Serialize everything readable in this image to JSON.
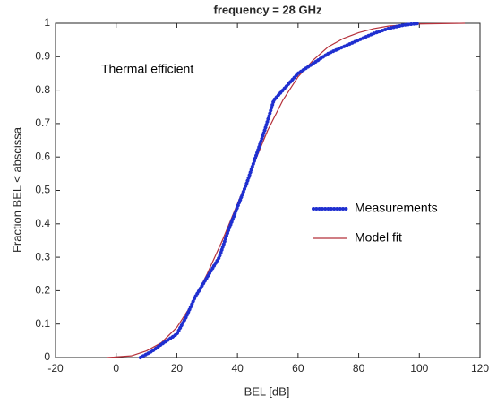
{
  "chart_data": {
    "type": "line",
    "title": "frequency = 28 GHz",
    "annotation": "Thermal efficient",
    "xlabel": "BEL [dB]",
    "ylabel": "Fraction BEL < abscissa",
    "xlim": [
      -20,
      120
    ],
    "ylim": [
      0,
      1
    ],
    "xticks": [
      -20,
      0,
      20,
      40,
      60,
      80,
      100,
      120
    ],
    "yticks": [
      0,
      0.1,
      0.2,
      0.3,
      0.4,
      0.5,
      0.6,
      0.7,
      0.8,
      0.9,
      1
    ],
    "grid": false,
    "legend": "right",
    "series": [
      {
        "name": "Measurements",
        "color": "#1f2fd0",
        "x": [
          8,
          12,
          15,
          20,
          23,
          26,
          30,
          34,
          37,
          40,
          43,
          46,
          49,
          51,
          52,
          55,
          60,
          65,
          70,
          75,
          80,
          85,
          90,
          95,
          100
        ],
        "values": [
          0,
          0.02,
          0.04,
          0.07,
          0.12,
          0.18,
          0.24,
          0.3,
          0.38,
          0.45,
          0.52,
          0.6,
          0.68,
          0.74,
          0.77,
          0.8,
          0.85,
          0.88,
          0.91,
          0.93,
          0.95,
          0.97,
          0.985,
          0.995,
          1
        ]
      },
      {
        "name": "Model fit",
        "color": "#b5303a",
        "x": [
          -3,
          5,
          10,
          15,
          20,
          25,
          30,
          35,
          40,
          45,
          50,
          55,
          60,
          65,
          70,
          75,
          80,
          85,
          90,
          100,
          115
        ],
        "values": [
          0,
          0.005,
          0.02,
          0.045,
          0.09,
          0.16,
          0.25,
          0.35,
          0.46,
          0.57,
          0.68,
          0.77,
          0.84,
          0.89,
          0.93,
          0.955,
          0.972,
          0.984,
          0.992,
          0.998,
          1
        ]
      }
    ]
  }
}
